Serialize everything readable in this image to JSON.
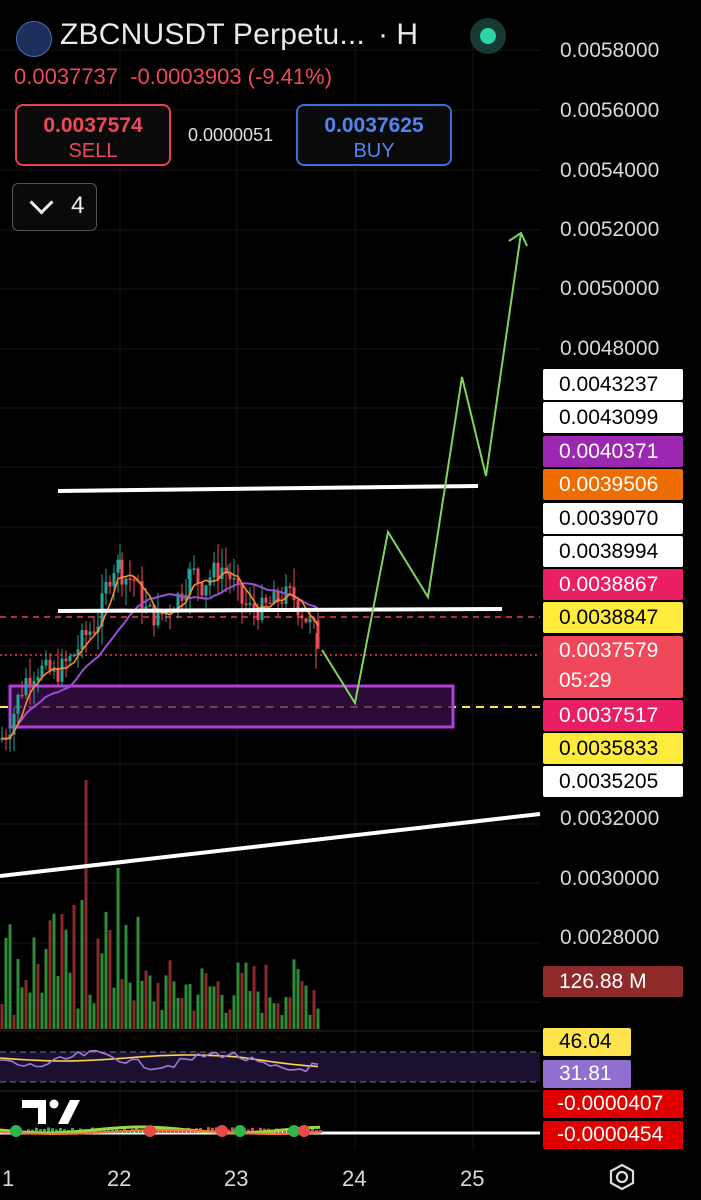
{
  "header": {
    "symbol_title": "ZBCNUSDT Perpetu...",
    "interval": "· H",
    "last_price": "0.0037737",
    "change": "-0.0003903 (-9.41%)",
    "sell": {
      "price": "0.0037574",
      "label": "SELL"
    },
    "buy": {
      "price": "0.0037625",
      "label": "BUY"
    },
    "spread": "0.0000051",
    "indicators_count": "4"
  },
  "colors": {
    "up": "#26a69a",
    "down": "#f0485a",
    "accent_sell": "#e84050",
    "accent_buy": "#3a6ed8",
    "sma": "#9c4dd6",
    "ema": "#ff8a2b",
    "rsi": "#ffd54a"
  },
  "price_axis": {
    "ticks": [
      "0.0058000",
      "0.0056000",
      "0.0054000",
      "0.0052000",
      "0.0050000",
      "0.0048000",
      "0.0032000",
      "0.0030000",
      "0.0028000"
    ]
  },
  "price_labels": [
    {
      "value": "0.0043237",
      "bg": "#ffffff",
      "fg": "#000000"
    },
    {
      "value": "0.0043099",
      "bg": "#ffffff",
      "fg": "#000000"
    },
    {
      "value": "0.0040371",
      "bg": "#9c27b0",
      "fg": "#ffffff"
    },
    {
      "value": "0.0039506",
      "bg": "#ef6c00",
      "fg": "#ffffff"
    },
    {
      "value": "0.0039070",
      "bg": "#ffffff",
      "fg": "#000000"
    },
    {
      "value": "0.0038994",
      "bg": "#ffffff",
      "fg": "#000000"
    },
    {
      "value": "0.0038867",
      "bg": "#e91e63",
      "fg": "#ffffff"
    },
    {
      "value": "0.0038847",
      "bg": "#ffeb3b",
      "fg": "#000000"
    },
    {
      "value": "0.0037517",
      "bg": "#e91e63",
      "fg": "#ffffff"
    },
    {
      "value": "0.0035833",
      "bg": "#ffeb3b",
      "fg": "#000000"
    },
    {
      "value": "0.0035205",
      "bg": "#ffffff",
      "fg": "#000000"
    }
  ],
  "current_price": {
    "value": "0.0037579",
    "countdown": "05:29"
  },
  "volume_label": "126.88 M",
  "rsi_labels": [
    "46.04",
    "31.81"
  ],
  "macd_labels": [
    "-0.0000407",
    "-0.0000454"
  ],
  "x_axis": [
    "1",
    "22",
    "23",
    "24",
    "25"
  ],
  "watermark": "TV"
}
